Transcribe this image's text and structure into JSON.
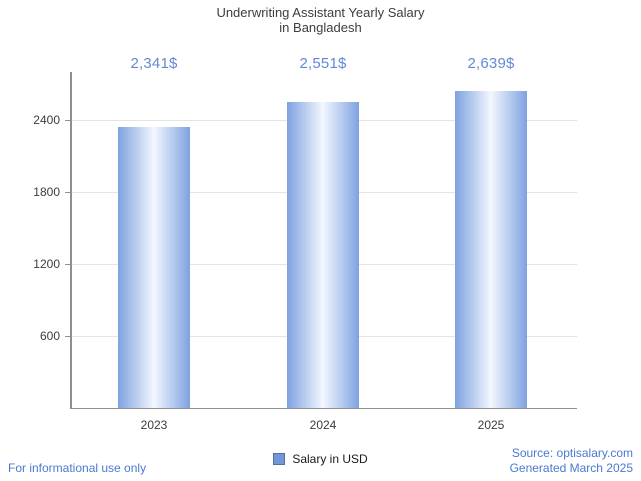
{
  "chart_data": {
    "type": "bar",
    "title_line1": "Underwriting Assistant Yearly Salary",
    "title_line2": "in Bangladesh",
    "categories": [
      "2023",
      "2024",
      "2025"
    ],
    "values": [
      2341,
      2551,
      2639
    ],
    "value_labels": [
      "2,341$",
      "2,551$",
      "2,639$"
    ],
    "series_name": "Salary in USD",
    "xlabel": "",
    "ylabel": "",
    "ylim": [
      0,
      2800
    ],
    "yticks": [
      600,
      1200,
      1800,
      2400
    ],
    "grid": true,
    "legend": {
      "label": "Salary in USD",
      "position": "bottom-center"
    }
  },
  "footer": {
    "left_note": "For informational use only",
    "source_line1": "Source: optisalary.com",
    "source_line2": "Generated March 2025"
  },
  "colors": {
    "title_text": "#3d3d3d",
    "axis_text": "#3c3c3c",
    "grid_line": "#e4e4e4",
    "axis_line": "#8f8f8f",
    "value_label": "#6488d4",
    "footer_text": "#4b79d2",
    "bar_edge": "#7ea2e0",
    "bar_center": "#f3f7fe",
    "legend_swatch": "#7296d8"
  }
}
